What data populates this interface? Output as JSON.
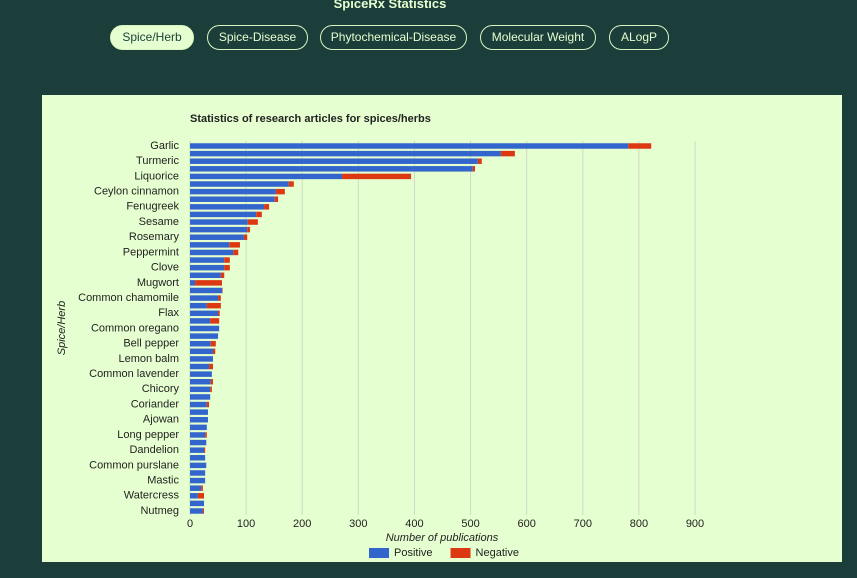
{
  "header": {
    "title": "SpiceRx Statistics",
    "tabs": [
      "Spice/Herb",
      "Spice-Disease",
      "Phytochemical-Disease",
      "Molecular Weight",
      "ALogP"
    ]
  },
  "chart_data": {
    "type": "bar",
    "orientation": "horizontal",
    "stacked": true,
    "title": "Statistics of research articles for spices/herbs",
    "x_label": "Number of publications",
    "y_label": "Spice/Herb",
    "categories": [
      "Garlic",
      null,
      "Turmeric",
      null,
      "Liquorice",
      null,
      "Ceylon cinnamon",
      null,
      "Fenugreek",
      null,
      "Sesame",
      null,
      "Rosemary",
      null,
      "Peppermint",
      null,
      "Clove",
      null,
      "Mugwort",
      null,
      "Common chamomile",
      null,
      "Flax",
      null,
      "Common oregano",
      null,
      "Bell pepper",
      null,
      "Lemon balm",
      null,
      "Common lavender",
      null,
      "Chicory",
      null,
      "Coriander",
      null,
      "Ajowan",
      null,
      "Long pepper",
      null,
      "Dandelion",
      null,
      "Common purslane",
      null,
      "Mastic",
      null,
      "Watercress",
      null,
      "Nutmeg"
    ],
    "series": [
      {
        "name": "Positive",
        "color": "#3366cc",
        "values": [
          781,
          554,
          513,
          504,
          271,
          176,
          153,
          151,
          132,
          118,
          103,
          102,
          96,
          70,
          77,
          61,
          61,
          55,
          9,
          57,
          50,
          30,
          50,
          36,
          52,
          50,
          37,
          41,
          41,
          34,
          39,
          37,
          36,
          36,
          30,
          32,
          32,
          30,
          27,
          29,
          25,
          27,
          29,
          27,
          27,
          20,
          14,
          25,
          23
        ]
      },
      {
        "name": "Negative",
        "color": "#dc3912",
        "values": [
          41,
          25,
          7,
          4,
          123,
          9,
          16,
          6,
          9,
          10,
          18,
          5,
          6,
          19,
          9,
          10,
          10,
          6,
          48,
          1,
          5,
          25,
          3,
          16,
          0,
          0,
          9,
          4,
          0,
          7,
          0,
          4,
          3,
          0,
          4,
          0,
          0,
          0,
          3,
          0,
          2,
          0,
          0,
          0,
          0,
          3,
          11,
          0,
          2
        ]
      }
    ],
    "xlim": [
      0,
      900
    ],
    "xticks": [
      0,
      100,
      200,
      300,
      400,
      500,
      600,
      700,
      800,
      900
    ],
    "grid": true,
    "legend": "bottom"
  }
}
